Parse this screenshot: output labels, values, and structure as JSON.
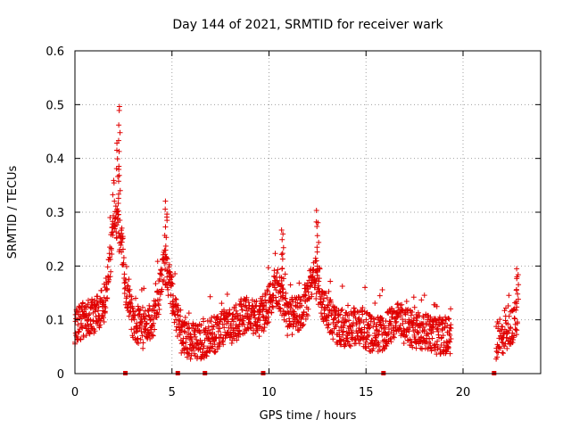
{
  "chart_data": {
    "type": "scatter",
    "title": "Day 144 of 2021, SRMTID for receiver wark",
    "xlabel": "GPS time / hours",
    "ylabel": "SRMTID / TECUs",
    "xlim": [
      0,
      24
    ],
    "ylim": [
      0,
      0.6
    ],
    "xticks": [
      0,
      5,
      10,
      15,
      20
    ],
    "xtick_labels": [
      "0",
      "5",
      "10",
      "15",
      "20"
    ],
    "yticks": [
      0,
      0.1,
      0.2,
      0.3,
      0.4,
      0.5,
      0.6
    ],
    "ytick_labels": [
      "0",
      "0.1",
      "0.2",
      "0.3",
      "0.4",
      "0.5",
      "0.6"
    ],
    "grid": true,
    "marker": "+",
    "color": "#e00000",
    "series": [
      {
        "name": "SRMTID",
        "profile_x": [
          0.0,
          0.5,
          1.0,
          1.5,
          1.8,
          2.0,
          2.2,
          2.4,
          2.6,
          3.0,
          3.5,
          4.0,
          4.3,
          4.6,
          4.8,
          5.1,
          5.5,
          6.0,
          6.5,
          7.0,
          7.5,
          8.0,
          8.5,
          9.0,
          9.5,
          10.0,
          10.3,
          10.6,
          11.0,
          11.5,
          12.0,
          12.3,
          12.6,
          13.0,
          13.5,
          14.0,
          14.5,
          15.0,
          15.5,
          16.0,
          16.5,
          17.0,
          17.5,
          18.0,
          18.5,
          19.0,
          19.4
        ],
        "profile_y": [
          0.09,
          0.1,
          0.11,
          0.13,
          0.2,
          0.3,
          0.27,
          0.25,
          0.16,
          0.1,
          0.08,
          0.1,
          0.14,
          0.2,
          0.18,
          0.13,
          0.07,
          0.06,
          0.06,
          0.07,
          0.08,
          0.09,
          0.1,
          0.11,
          0.1,
          0.13,
          0.16,
          0.15,
          0.1,
          0.11,
          0.14,
          0.19,
          0.15,
          0.11,
          0.09,
          0.08,
          0.09,
          0.08,
          0.07,
          0.08,
          0.1,
          0.09,
          0.08,
          0.08,
          0.07,
          0.07,
          0.07
        ],
        "segment_2_x": [
          21.7,
          22.0,
          22.3,
          22.6,
          22.8
        ],
        "segment_2_y": [
          0.06,
          0.07,
          0.08,
          0.09,
          0.11
        ],
        "peaks": [
          {
            "x": 2.3,
            "y": 0.5
          },
          {
            "x": 2.2,
            "y": 0.43
          },
          {
            "x": 4.7,
            "y": 0.32
          },
          {
            "x": 10.7,
            "y": 0.26
          },
          {
            "x": 12.5,
            "y": 0.3
          },
          {
            "x": 22.8,
            "y": 0.19
          }
        ]
      }
    ],
    "gap_markers_x": [
      2.6,
      5.3,
      6.7,
      9.7,
      15.9,
      21.6
    ]
  }
}
